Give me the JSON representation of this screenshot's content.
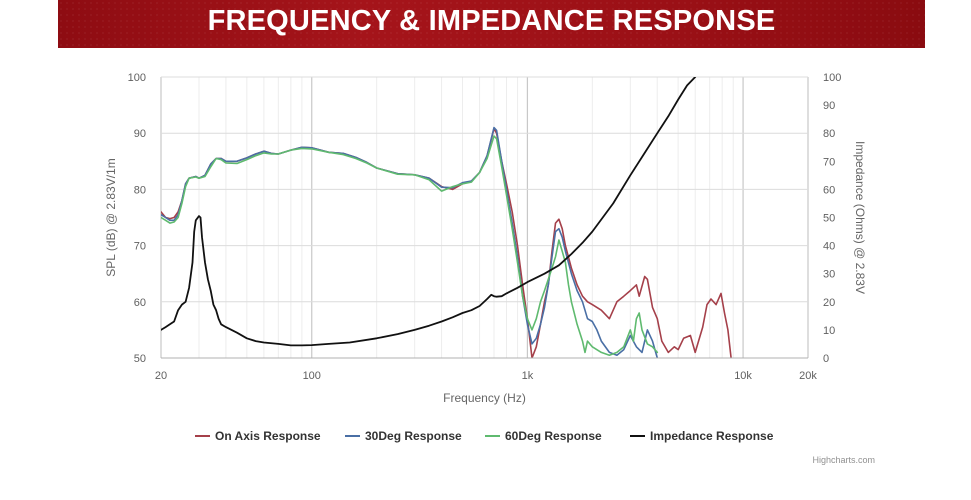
{
  "header": {
    "title": "FREQUENCY & IMPEDANCE RESPONSE"
  },
  "credit": "Highcharts.com",
  "chart_data": {
    "type": "line",
    "xscale": "log",
    "xlim": [
      20,
      20000
    ],
    "xticks": [
      20,
      100,
      1000,
      10000,
      20000
    ],
    "xtick_labels": [
      "20",
      "100",
      "1k",
      "10k",
      "20k"
    ],
    "xlabel": "Frequency (Hz)",
    "ylim": [
      50,
      100
    ],
    "yticks": [
      50,
      60,
      70,
      80,
      90,
      100
    ],
    "ylabel": "SPL (dB) @ 2.83V/1m",
    "y2lim": [
      0,
      100
    ],
    "y2ticks": [
      0,
      10,
      20,
      30,
      40,
      50,
      60,
      70,
      80,
      90,
      100
    ],
    "y2label": "Impedance (Ohms) @ 2.83V",
    "grid": true,
    "legend_position": "bottom",
    "series": [
      {
        "name": "On Axis Response",
        "color": "#a5404a",
        "axis": "left",
        "points": [
          [
            20,
            76
          ],
          [
            21,
            75
          ],
          [
            22,
            74.8
          ],
          [
            23,
            75
          ],
          [
            24,
            76
          ],
          [
            25,
            78
          ],
          [
            26,
            81
          ],
          [
            27,
            82
          ],
          [
            29,
            82.3
          ],
          [
            30,
            82
          ],
          [
            32,
            82.5
          ],
          [
            34,
            84.5
          ],
          [
            36,
            85.5
          ],
          [
            38,
            85.5
          ],
          [
            40,
            85
          ],
          [
            45,
            85
          ],
          [
            50,
            85.6
          ],
          [
            55,
            86.3
          ],
          [
            60,
            86.8
          ],
          [
            65,
            86.4
          ],
          [
            70,
            86.3
          ],
          [
            80,
            87
          ],
          [
            90,
            87.5
          ],
          [
            100,
            87.4
          ],
          [
            120,
            86.6
          ],
          [
            140,
            86.4
          ],
          [
            160,
            85.7
          ],
          [
            180,
            84.8
          ],
          [
            200,
            83.8
          ],
          [
            250,
            82.8
          ],
          [
            300,
            82.6
          ],
          [
            350,
            82
          ],
          [
            400,
            80.5
          ],
          [
            450,
            80
          ],
          [
            500,
            81
          ],
          [
            550,
            81.5
          ],
          [
            600,
            83
          ],
          [
            650,
            86
          ],
          [
            700,
            90.8
          ],
          [
            720,
            90
          ],
          [
            760,
            85
          ],
          [
            800,
            81
          ],
          [
            850,
            76
          ],
          [
            900,
            70
          ],
          [
            950,
            63
          ],
          [
            1000,
            57
          ],
          [
            1050,
            50
          ],
          [
            1100,
            52
          ],
          [
            1150,
            56
          ],
          [
            1200,
            60
          ],
          [
            1250,
            63
          ],
          [
            1300,
            69
          ],
          [
            1350,
            74
          ],
          [
            1400,
            74.7
          ],
          [
            1450,
            73
          ],
          [
            1500,
            70
          ],
          [
            1600,
            66
          ],
          [
            1700,
            63
          ],
          [
            1800,
            61
          ],
          [
            1900,
            60
          ],
          [
            2000,
            59.5
          ],
          [
            2200,
            58.5
          ],
          [
            2400,
            57
          ],
          [
            2600,
            60
          ],
          [
            2800,
            61
          ],
          [
            3000,
            62
          ],
          [
            3200,
            63
          ],
          [
            3300,
            61
          ],
          [
            3500,
            64.5
          ],
          [
            3600,
            64
          ],
          [
            3800,
            59
          ],
          [
            4000,
            57
          ],
          [
            4200,
            53
          ],
          [
            4500,
            51
          ],
          [
            4800,
            52
          ],
          [
            5000,
            51.5
          ],
          [
            5300,
            53.5
          ],
          [
            5700,
            54
          ],
          [
            6000,
            51
          ],
          [
            6500,
            55.5
          ],
          [
            6800,
            59.5
          ],
          [
            7100,
            60.5
          ],
          [
            7500,
            59.5
          ],
          [
            7900,
            61.5
          ],
          [
            8200,
            58
          ],
          [
            8500,
            55
          ],
          [
            8800,
            50
          ]
        ]
      },
      {
        "name": "30Deg Response",
        "color": "#4a6fa5",
        "axis": "left",
        "points": [
          [
            20,
            75.5
          ],
          [
            21,
            75
          ],
          [
            22,
            74.5
          ],
          [
            23,
            74.5
          ],
          [
            24,
            75.5
          ],
          [
            25,
            78
          ],
          [
            26,
            81
          ],
          [
            27,
            82
          ],
          [
            29,
            82.3
          ],
          [
            30,
            82
          ],
          [
            32,
            82.5
          ],
          [
            34,
            84.5
          ],
          [
            36,
            85.5
          ],
          [
            38,
            85.5
          ],
          [
            40,
            85
          ],
          [
            45,
            85
          ],
          [
            50,
            85.6
          ],
          [
            55,
            86.3
          ],
          [
            60,
            86.8
          ],
          [
            65,
            86.4
          ],
          [
            70,
            86.3
          ],
          [
            80,
            87
          ],
          [
            90,
            87.5
          ],
          [
            100,
            87.4
          ],
          [
            120,
            86.6
          ],
          [
            140,
            86.4
          ],
          [
            160,
            85.7
          ],
          [
            180,
            84.8
          ],
          [
            200,
            83.8
          ],
          [
            250,
            82.8
          ],
          [
            300,
            82.6
          ],
          [
            350,
            82
          ],
          [
            400,
            80.4
          ],
          [
            450,
            80.3
          ],
          [
            500,
            81.2
          ],
          [
            550,
            81.5
          ],
          [
            600,
            83
          ],
          [
            650,
            86
          ],
          [
            700,
            91
          ],
          [
            720,
            90.5
          ],
          [
            760,
            85
          ],
          [
            800,
            80
          ],
          [
            850,
            74
          ],
          [
            900,
            68
          ],
          [
            950,
            61
          ],
          [
            1000,
            56
          ],
          [
            1050,
            52.5
          ],
          [
            1100,
            53.5
          ],
          [
            1150,
            56
          ],
          [
            1200,
            59
          ],
          [
            1250,
            63
          ],
          [
            1300,
            68
          ],
          [
            1350,
            72.5
          ],
          [
            1400,
            73
          ],
          [
            1450,
            71.5
          ],
          [
            1500,
            69
          ],
          [
            1600,
            65
          ],
          [
            1700,
            62
          ],
          [
            1800,
            60
          ],
          [
            1900,
            57
          ],
          [
            2000,
            56.5
          ],
          [
            2100,
            55
          ],
          [
            2200,
            53
          ],
          [
            2400,
            51
          ],
          [
            2600,
            50.5
          ],
          [
            2800,
            51.5
          ],
          [
            3000,
            54
          ],
          [
            3200,
            52
          ],
          [
            3400,
            51
          ],
          [
            3600,
            55
          ],
          [
            3800,
            53
          ],
          [
            4000,
            50
          ]
        ]
      },
      {
        "name": "60Deg Response",
        "color": "#5fba6f",
        "axis": "left",
        "points": [
          [
            20,
            75
          ],
          [
            21,
            74.5
          ],
          [
            22,
            74
          ],
          [
            23,
            74.2
          ],
          [
            24,
            75
          ],
          [
            25,
            77.5
          ],
          [
            26,
            80.5
          ],
          [
            27,
            82
          ],
          [
            29,
            82.2
          ],
          [
            30,
            82
          ],
          [
            32,
            82.3
          ],
          [
            34,
            84
          ],
          [
            36,
            85.5
          ],
          [
            38,
            85.3
          ],
          [
            40,
            84.7
          ],
          [
            45,
            84.6
          ],
          [
            50,
            85.3
          ],
          [
            55,
            86
          ],
          [
            60,
            86.5
          ],
          [
            65,
            86.3
          ],
          [
            70,
            86.3
          ],
          [
            80,
            87
          ],
          [
            90,
            87.3
          ],
          [
            100,
            87.2
          ],
          [
            120,
            86.6
          ],
          [
            140,
            86.2
          ],
          [
            160,
            85.5
          ],
          [
            180,
            84.7
          ],
          [
            200,
            83.8
          ],
          [
            250,
            82.7
          ],
          [
            300,
            82.6
          ],
          [
            350,
            81.7
          ],
          [
            400,
            79.7
          ],
          [
            450,
            80.5
          ],
          [
            500,
            81
          ],
          [
            550,
            81.3
          ],
          [
            600,
            83
          ],
          [
            650,
            85.5
          ],
          [
            700,
            89.5
          ],
          [
            720,
            89
          ],
          [
            760,
            84
          ],
          [
            800,
            79
          ],
          [
            850,
            73
          ],
          [
            900,
            67
          ],
          [
            950,
            61
          ],
          [
            1000,
            57
          ],
          [
            1050,
            55
          ],
          [
            1100,
            57
          ],
          [
            1150,
            60
          ],
          [
            1200,
            62
          ],
          [
            1250,
            64
          ],
          [
            1300,
            66
          ],
          [
            1350,
            68
          ],
          [
            1400,
            71
          ],
          [
            1450,
            69
          ],
          [
            1500,
            67
          ],
          [
            1550,
            63
          ],
          [
            1600,
            60
          ],
          [
            1700,
            56
          ],
          [
            1800,
            53
          ],
          [
            1850,
            51
          ],
          [
            1900,
            53
          ],
          [
            2000,
            52
          ],
          [
            2200,
            51
          ],
          [
            2400,
            50.5
          ],
          [
            2600,
            51
          ],
          [
            2800,
            52
          ],
          [
            3000,
            55
          ],
          [
            3100,
            53
          ],
          [
            3200,
            57
          ],
          [
            3300,
            58
          ],
          [
            3400,
            55
          ],
          [
            3600,
            52.5
          ],
          [
            3800,
            52
          ],
          [
            4000,
            51
          ]
        ]
      },
      {
        "name": "Impedance Response",
        "color": "#111111",
        "axis": "right",
        "points": [
          [
            20,
            10
          ],
          [
            21,
            11
          ],
          [
            22,
            12
          ],
          [
            23,
            13
          ],
          [
            24,
            17
          ],
          [
            25,
            19
          ],
          [
            26,
            20
          ],
          [
            27,
            25
          ],
          [
            28,
            34
          ],
          [
            28.5,
            45
          ],
          [
            29,
            49
          ],
          [
            30,
            50.5
          ],
          [
            30.5,
            50
          ],
          [
            31,
            43
          ],
          [
            32,
            34
          ],
          [
            33,
            28
          ],
          [
            34,
            24
          ],
          [
            35,
            19
          ],
          [
            36,
            17
          ],
          [
            37,
            14
          ],
          [
            38,
            12
          ],
          [
            40,
            11
          ],
          [
            45,
            9
          ],
          [
            50,
            7
          ],
          [
            55,
            6
          ],
          [
            60,
            5.5
          ],
          [
            70,
            5
          ],
          [
            80,
            4.5
          ],
          [
            90,
            4.5
          ],
          [
            100,
            4.6
          ],
          [
            120,
            5
          ],
          [
            150,
            5.5
          ],
          [
            200,
            7
          ],
          [
            250,
            8.5
          ],
          [
            300,
            10
          ],
          [
            350,
            11.5
          ],
          [
            400,
            13
          ],
          [
            450,
            14.5
          ],
          [
            500,
            16
          ],
          [
            550,
            17
          ],
          [
            600,
            18.5
          ],
          [
            650,
            21
          ],
          [
            680,
            22.5
          ],
          [
            700,
            22
          ],
          [
            720,
            21.8
          ],
          [
            760,
            22
          ],
          [
            800,
            23
          ],
          [
            900,
            25
          ],
          [
            1000,
            27
          ],
          [
            1200,
            30
          ],
          [
            1400,
            33
          ],
          [
            1600,
            37
          ],
          [
            1800,
            41
          ],
          [
            2000,
            45
          ],
          [
            2500,
            55
          ],
          [
            3000,
            65
          ],
          [
            3500,
            73
          ],
          [
            4000,
            80
          ],
          [
            4500,
            86
          ],
          [
            5000,
            92
          ],
          [
            5500,
            97
          ],
          [
            6000,
            100
          ]
        ]
      }
    ]
  }
}
